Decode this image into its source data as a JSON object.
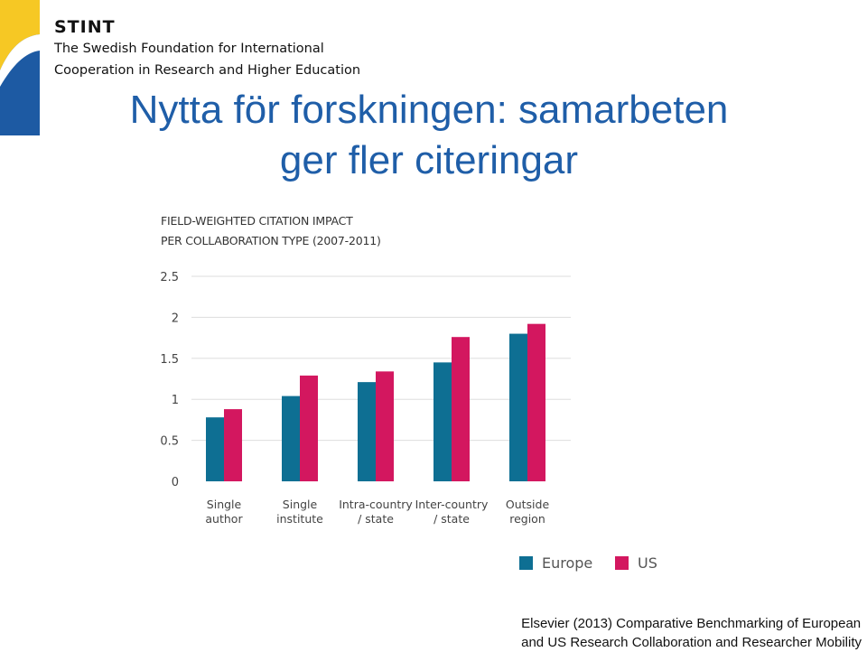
{
  "org": {
    "short_name": "STINT",
    "line1": "The Swedish Foundation for International",
    "line2": "Cooperation in Research and Higher Education"
  },
  "slide": {
    "title_line1": "Nytta för forskningen: samarbeten",
    "title_line2": "ger fler citeringar"
  },
  "chart_data": {
    "type": "bar",
    "title_line1": "FIELD-WEIGHTED CITATION IMPACT",
    "title_line2": "PER COLLABORATION TYPE (2007-2011)",
    "categories": [
      [
        "Single",
        "author"
      ],
      [
        "Single",
        "institute"
      ],
      [
        "Intra-country",
        "/ state"
      ],
      [
        "Inter-country",
        "/ state"
      ],
      [
        "Outside",
        "region"
      ]
    ],
    "series": [
      {
        "name": "Europe",
        "color": "#0e6f93",
        "values": [
          0.78,
          1.04,
          1.21,
          1.45,
          1.8
        ]
      },
      {
        "name": "US",
        "color": "#d3175f",
        "values": [
          0.88,
          1.29,
          1.34,
          1.76,
          1.92
        ]
      }
    ],
    "yticks": [
      "0",
      "0.5",
      "1",
      "1.5",
      "2",
      "2.5"
    ],
    "ylim": [
      0,
      2.5
    ],
    "grid": true,
    "legend_position": "bottom-right"
  },
  "source": {
    "line1": "Elsevier (2013) Comparative Benchmarking of European",
    "line2": "and US Research Collaboration and Researcher Mobility"
  },
  "colors": {
    "brand_blue": "#1f5ea8",
    "logo_yellow": "#f6c824",
    "logo_blue": "#1d5aa3"
  }
}
